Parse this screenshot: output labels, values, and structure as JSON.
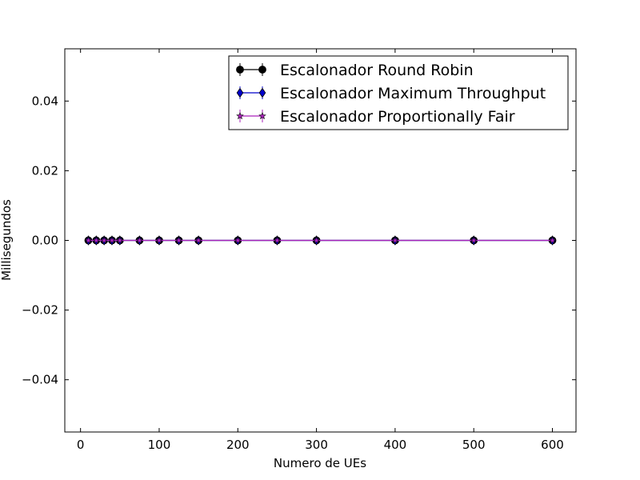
{
  "chart_data": {
    "type": "line",
    "title": "",
    "xlabel": "Numero de UEs",
    "ylabel": "Millisegundos",
    "xlim": [
      -20,
      630
    ],
    "ylim": [
      -0.055,
      0.055
    ],
    "xticks": [
      0,
      100,
      200,
      300,
      400,
      500,
      600
    ],
    "xtick_labels": [
      "0",
      "100",
      "200",
      "300",
      "400",
      "500",
      "600"
    ],
    "yticks": [
      -0.04,
      -0.02,
      0.0,
      0.02,
      0.04
    ],
    "ytick_labels": [
      "−0.04",
      "−0.02",
      "0.00",
      "0.02",
      "0.04"
    ],
    "grid": false,
    "legend_position": "top-right",
    "x": [
      10,
      20,
      30,
      40,
      50,
      75,
      100,
      125,
      150,
      200,
      250,
      300,
      400,
      500,
      600
    ],
    "series": [
      {
        "name": "Escalonador Round Robin",
        "color": "#000000",
        "marker": "circle",
        "values": [
          0,
          0,
          0,
          0,
          0,
          0,
          0,
          0,
          0,
          0,
          0,
          0,
          0,
          0,
          0
        ]
      },
      {
        "name": "Escalonador Maximum Throughput",
        "color": "#0000cc",
        "marker": "diamond",
        "values": [
          0,
          0,
          0,
          0,
          0,
          0,
          0,
          0,
          0,
          0,
          0,
          0,
          0,
          0,
          0
        ]
      },
      {
        "name": "Escalonador Proportionally Fair",
        "color": "#aa22bb",
        "marker": "star",
        "values": [
          0,
          0,
          0,
          0,
          0,
          0,
          0,
          0,
          0,
          0,
          0,
          0,
          0,
          0,
          0
        ]
      }
    ]
  }
}
